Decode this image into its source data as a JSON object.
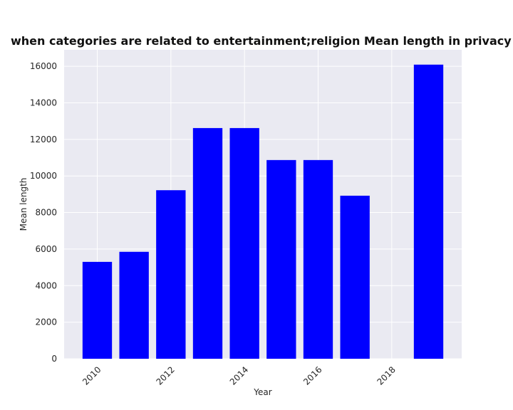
{
  "chart_data": {
    "type": "bar",
    "title": "when categories are related to entertainment;religion Mean length in privacy policies by Year",
    "xlabel": "Year",
    "ylabel": "Mean length",
    "x": [
      2010,
      2011,
      2012,
      2013,
      2014,
      2015,
      2016,
      2017,
      2019
    ],
    "values": [
      5300,
      5850,
      9220,
      12620,
      12620,
      10870,
      10870,
      8920,
      16090
    ],
    "xlim": [
      2009.1,
      2019.9
    ],
    "ylim": [
      0,
      16900
    ],
    "xticks": [
      "2010",
      "2012",
      "2014",
      "2016",
      "2018"
    ],
    "yticks": [
      "0",
      "2000",
      "4000",
      "6000",
      "8000",
      "10000",
      "12000",
      "14000",
      "16000"
    ],
    "grid": true,
    "colors": {
      "bar": "#0000ff",
      "plot_background": "#eaeaf2",
      "grid": "#ffffff"
    }
  }
}
